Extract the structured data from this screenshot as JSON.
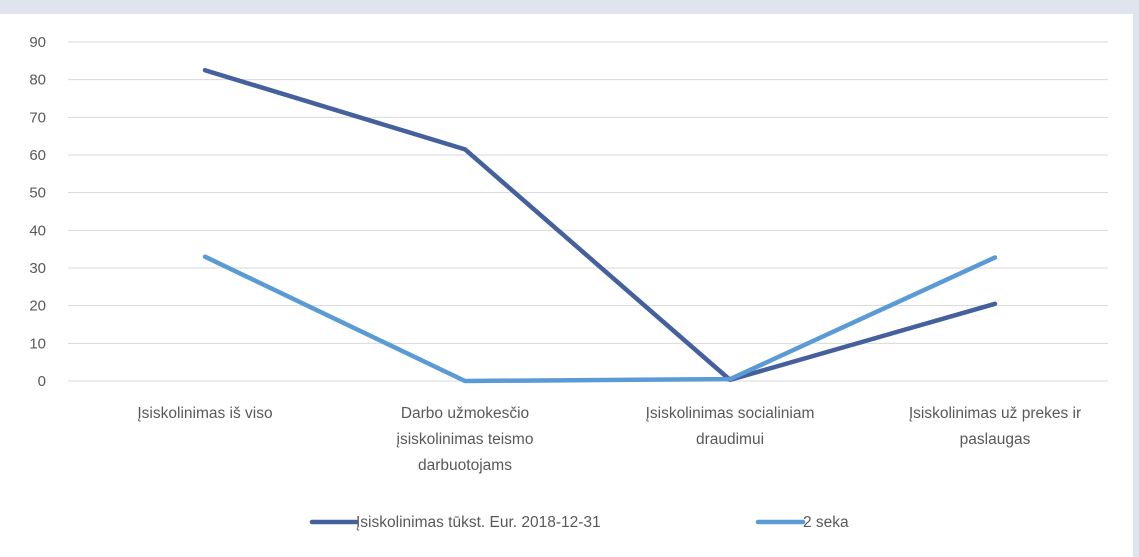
{
  "chart_data": {
    "type": "line",
    "categories": [
      [
        "Įsiskolinimas iš viso"
      ],
      [
        "Darbo užmokesčio",
        "įsiskolinimas teismo",
        "darbuotojams"
      ],
      [
        "Įsiskolinimas socialiniam",
        "draudimui"
      ],
      [
        "Įsiskolinimas už prekes ir",
        "paslaugas"
      ]
    ],
    "series": [
      {
        "name": "Įsiskolinimas tūkst. Eur. 2018-12-31",
        "color": "#44619d",
        "values": [
          82.5,
          61.5,
          0.3,
          20.5
        ]
      },
      {
        "name": "2 seka",
        "color": "#5b9bd5",
        "values": [
          33,
          0,
          0.5,
          32.8
        ]
      }
    ],
    "y_ticks": [
      "0",
      "10",
      "20",
      "30",
      "40",
      "50",
      "60",
      "70",
      "80",
      "90"
    ],
    "ylim": [
      0,
      90
    ],
    "grid": true,
    "legend_position": "bottom"
  }
}
